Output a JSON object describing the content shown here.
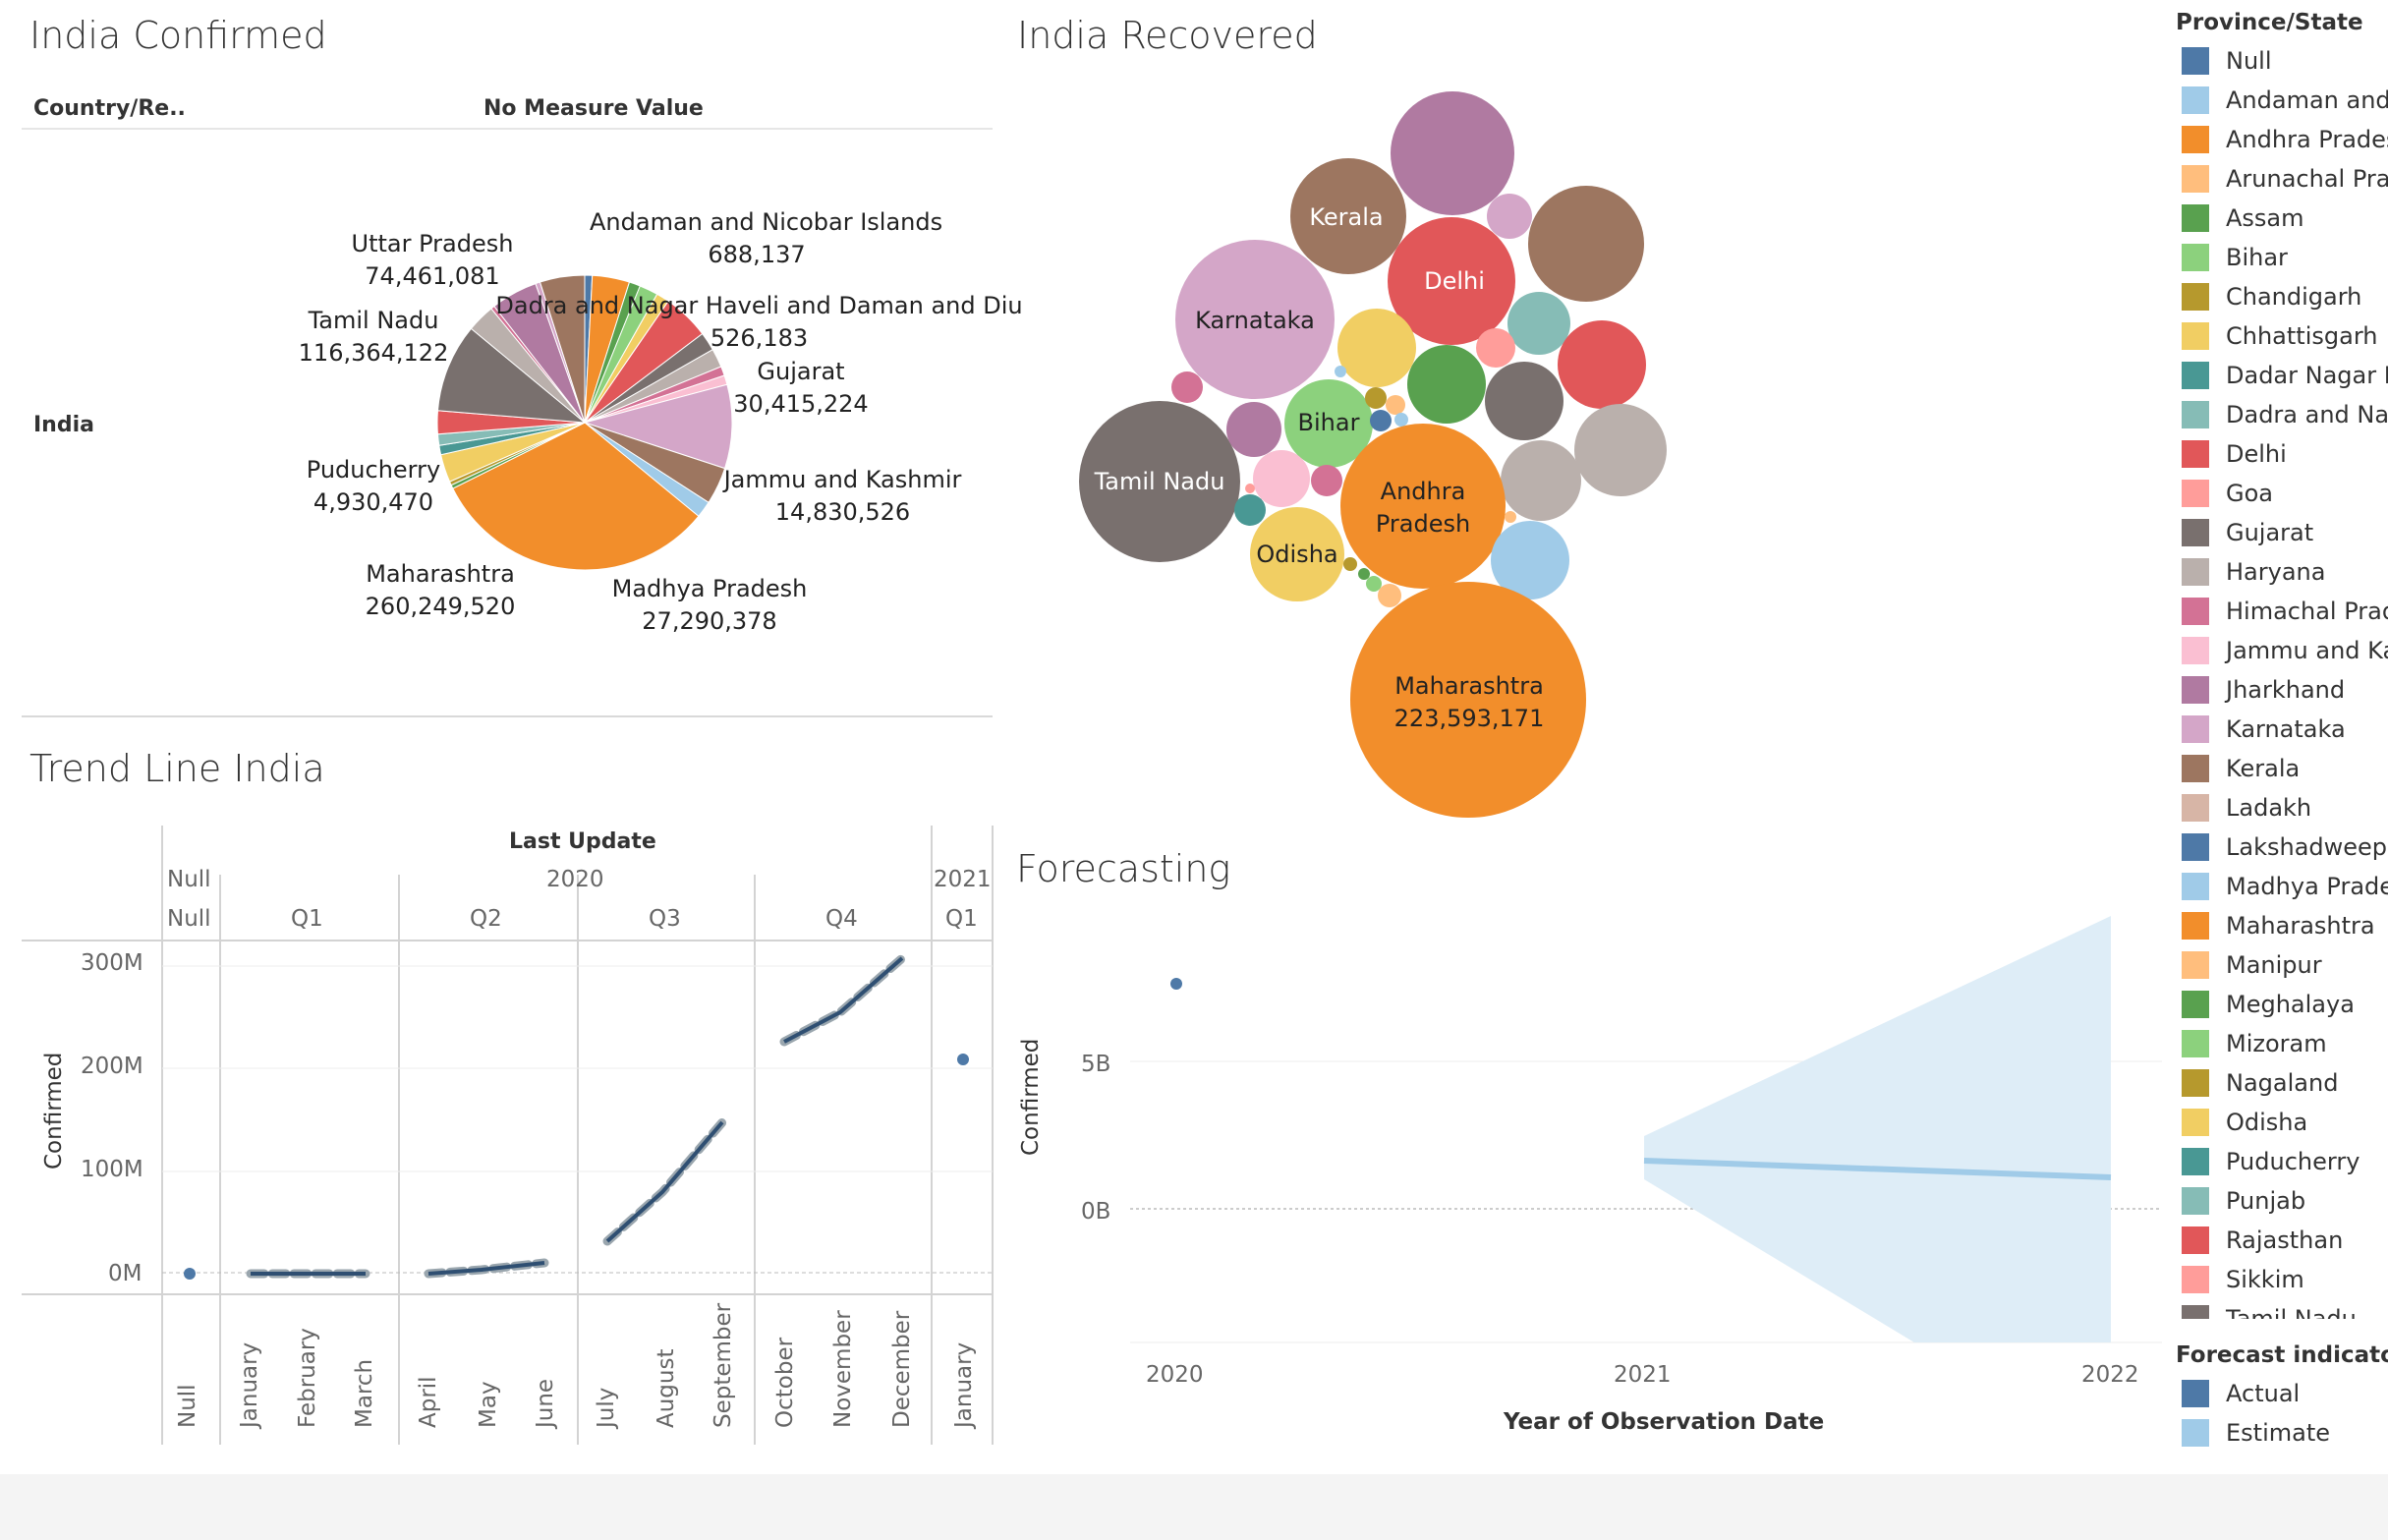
{
  "confirmed": {
    "title": "India Confirmed",
    "col_header": "Country/Re..",
    "measure_header": "No Measure Value",
    "row_label": "India",
    "labels": [
      {
        "name": "Andaman and Nicobar Islands",
        "value": "688,137"
      },
      {
        "name": "Uttar Pradesh",
        "value": "74,461,081"
      },
      {
        "name": "Dadra and Nagar Haveli and Daman and Diu",
        "value": "526,183"
      },
      {
        "name": "Tamil Nadu",
        "value": "116,364,122"
      },
      {
        "name": "Gujarat",
        "value": "30,415,224"
      },
      {
        "name": "Puducherry",
        "value": "4,930,470"
      },
      {
        "name": "Jammu and Kashmir",
        "value": "14,830,526"
      },
      {
        "name": "Maharashtra",
        "value": "260,249,520"
      },
      {
        "name": "Madhya Pradesh",
        "value": "27,290,378"
      }
    ]
  },
  "recovered": {
    "title": "India Recovered",
    "labels": [
      {
        "name": "Kerala"
      },
      {
        "name": "Delhi"
      },
      {
        "name": "Karnataka"
      },
      {
        "name": "Bihar"
      },
      {
        "name": "Tamil Nadu"
      },
      {
        "name": "Andhra Pradesh"
      },
      {
        "name": "Odisha"
      },
      {
        "name": "Maharashtra",
        "value": "223,593,171"
      }
    ]
  },
  "trend": {
    "title": "Trend Line India",
    "header_top": "Last Update",
    "years": [
      "Null",
      "2020",
      "2021"
    ],
    "quarters": [
      "Null",
      "Q1",
      "Q2",
      "Q3",
      "Q4",
      "Q1"
    ],
    "months": [
      "Null",
      "January",
      "February",
      "March",
      "April",
      "May",
      "June",
      "July",
      "August",
      "September",
      "October",
      "November",
      "December",
      "January"
    ],
    "y_title": "Confirmed",
    "y_ticks": [
      "300M",
      "200M",
      "100M",
      "0M"
    ]
  },
  "forecast": {
    "title": "Forecasting",
    "y_title": "Confirmed",
    "y_ticks": [
      "5B",
      "0B"
    ],
    "x_ticks": [
      "2020",
      "2021",
      "2022"
    ],
    "x_title": "Year of Observation Date"
  },
  "legend": {
    "title": "Province/State",
    "items": [
      {
        "label": "Null",
        "color": "#4e79a7"
      },
      {
        "label": "Andaman and N",
        "color": "#a0cbe8"
      },
      {
        "label": "Andhra Pradesh",
        "color": "#f28e2b"
      },
      {
        "label": "Arunachal Prad",
        "color": "#ffbe7d"
      },
      {
        "label": "Assam",
        "color": "#59a14f"
      },
      {
        "label": "Bihar",
        "color": "#8cd17d"
      },
      {
        "label": "Chandigarh",
        "color": "#b6992d"
      },
      {
        "label": "Chhattisgarh",
        "color": "#f1ce63"
      },
      {
        "label": "Dadar Nagar Ha",
        "color": "#499894"
      },
      {
        "label": "Dadra and Naga",
        "color": "#86bcb6"
      },
      {
        "label": "Delhi",
        "color": "#e15759"
      },
      {
        "label": "Goa",
        "color": "#ff9d9a"
      },
      {
        "label": "Gujarat",
        "color": "#79706e"
      },
      {
        "label": "Haryana",
        "color": "#bab0ac"
      },
      {
        "label": "Himachal Prade",
        "color": "#d37295"
      },
      {
        "label": "Jammu and Kas",
        "color": "#fabfd2"
      },
      {
        "label": "Jharkhand",
        "color": "#b07aa1"
      },
      {
        "label": "Karnataka",
        "color": "#d4a6c8"
      },
      {
        "label": "Kerala",
        "color": "#9d7660"
      },
      {
        "label": "Ladakh",
        "color": "#d7b5a6"
      },
      {
        "label": "Lakshadweep",
        "color": "#4e79a7"
      },
      {
        "label": "Madhya Prades",
        "color": "#a0cbe8"
      },
      {
        "label": "Maharashtra",
        "color": "#f28e2b"
      },
      {
        "label": "Manipur",
        "color": "#ffbe7d"
      },
      {
        "label": "Meghalaya",
        "color": "#59a14f"
      },
      {
        "label": "Mizoram",
        "color": "#8cd17d"
      },
      {
        "label": "Nagaland",
        "color": "#b6992d"
      },
      {
        "label": "Odisha",
        "color": "#f1ce63"
      },
      {
        "label": "Puducherry",
        "color": "#499894"
      },
      {
        "label": "Punjab",
        "color": "#86bcb6"
      },
      {
        "label": "Rajasthan",
        "color": "#e15759"
      },
      {
        "label": "Sikkim",
        "color": "#ff9d9a"
      },
      {
        "label": "Tamil Nadu",
        "color": "#79706e"
      }
    ],
    "forecast_title": "Forecast indicator",
    "forecast_items": [
      {
        "label": "Actual",
        "color": "#4e79a7"
      },
      {
        "label": "Estimate",
        "color": "#a0cbe8"
      }
    ]
  }
}
